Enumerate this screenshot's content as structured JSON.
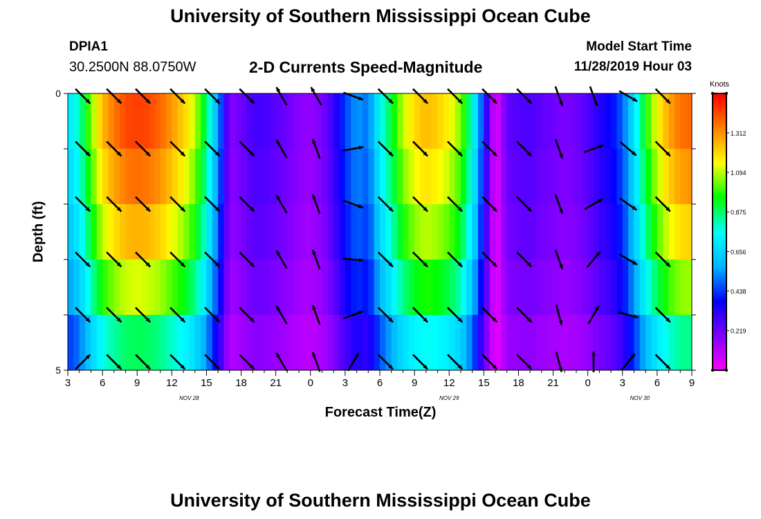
{
  "header": {
    "title": "University of Southern Mississippi Ocean Cube",
    "station_id": "DPIA1",
    "coordinates": "30.2500N 88.0750W",
    "subtitle": "2-D Currents Speed-Magnitude",
    "model_start_label": "Model Start Time",
    "model_start_value": "11/28/2019 Hour 03"
  },
  "footer": {
    "title": "University of Southern Mississippi Ocean Cube"
  },
  "chart_data": {
    "type": "heatmap",
    "title": "2-D Currents Speed-Magnitude",
    "xlabel": "Forecast Time(Z)",
    "ylabel": "Depth (ft)",
    "x_range_hours": [
      0,
      54
    ],
    "ylim": [
      0,
      5
    ],
    "x_ticks": [
      {
        "h": 0,
        "label": "3"
      },
      {
        "h": 3,
        "label": "6"
      },
      {
        "h": 6,
        "label": "9"
      },
      {
        "h": 9,
        "label": "12"
      },
      {
        "h": 12,
        "label": "15"
      },
      {
        "h": 15,
        "label": "18"
      },
      {
        "h": 18,
        "label": "21"
      },
      {
        "h": 21,
        "label": "0"
      },
      {
        "h": 24,
        "label": "3"
      },
      {
        "h": 27,
        "label": "6"
      },
      {
        "h": 30,
        "label": "9"
      },
      {
        "h": 33,
        "label": "12"
      },
      {
        "h": 36,
        "label": "15"
      },
      {
        "h": 39,
        "label": "18"
      },
      {
        "h": 42,
        "label": "21"
      },
      {
        "h": 45,
        "label": "0"
      },
      {
        "h": 48,
        "label": "3"
      },
      {
        "h": 51,
        "label": "6"
      },
      {
        "h": 54,
        "label": "9"
      }
    ],
    "date_labels": [
      {
        "h": 10.5,
        "label": "NOV 28"
      },
      {
        "h": 33.0,
        "label": "NOV 29"
      },
      {
        "h": 49.5,
        "label": "NOV 30"
      }
    ],
    "y_tick_labels": [
      {
        "depth": 0,
        "label": "0"
      },
      {
        "depth": 5,
        "label": "5"
      }
    ],
    "depth_levels": 5,
    "colorbar": {
      "label": "Knots",
      "range": [
        0,
        1.53
      ],
      "tick_values": [
        0.219,
        0.438,
        0.656,
        0.875,
        1.094,
        1.312
      ],
      "tick_labels": [
        "0.219",
        "0.438",
        "0.656",
        "0.875",
        "1.094",
        "1.312"
      ],
      "colors": [
        "#ff00ff",
        "#8000ff",
        "#0000ff",
        "#00b4ff",
        "#00ffff",
        "#00ff00",
        "#ffff00",
        "#ff8000",
        "#ff0000"
      ]
    },
    "time_hours": [
      0,
      1,
      2,
      3,
      4,
      5,
      6,
      7,
      8,
      9,
      10,
      11,
      12,
      13,
      14,
      15,
      16,
      17,
      18,
      19,
      20,
      21,
      22,
      23,
      24,
      25,
      26,
      27,
      28,
      29,
      30,
      31,
      32,
      33,
      34,
      35,
      36,
      37,
      38,
      39,
      40,
      41,
      42,
      43,
      44,
      45,
      46,
      47,
      48,
      49,
      50,
      51,
      52,
      53,
      54
    ],
    "speed_profile_knots": [
      0.7,
      0.82,
      1.05,
      1.25,
      1.35,
      1.42,
      1.44,
      1.42,
      1.38,
      1.3,
      1.22,
      1.1,
      0.88,
      0.55,
      0.18,
      0.22,
      0.28,
      0.28,
      0.25,
      0.22,
      0.18,
      0.16,
      0.2,
      0.3,
      0.45,
      0.55,
      0.5,
      0.75,
      0.92,
      1.1,
      1.2,
      1.25,
      1.22,
      1.16,
      1.05,
      0.8,
      0.4,
      0.02,
      0.24,
      0.26,
      0.27,
      0.24,
      0.22,
      0.2,
      0.22,
      0.26,
      0.33,
      0.38,
      0.48,
      0.7,
      0.96,
      1.15,
      1.28,
      1.36,
      1.38
    ],
    "depth_factors": [
      1.0,
      0.95,
      0.88,
      0.78,
      0.62
    ],
    "arrows": {
      "hours": [
        1.3,
        4.0,
        6.5,
        9.5,
        12.5,
        15.5,
        18.5,
        21.5,
        24.7,
        27.5,
        30.5,
        33.5,
        36.5,
        39.5,
        42.5,
        45.5,
        48.5,
        51.5
      ],
      "directions_deg": [
        [
          135,
          135,
          135,
          135,
          135,
          135,
          330,
          330,
          110,
          135,
          135,
          135,
          135,
          135,
          160,
          160,
          120,
          135
        ],
        [
          135,
          135,
          135,
          135,
          135,
          135,
          330,
          340,
          80,
          135,
          135,
          135,
          135,
          135,
          160,
          70,
          130,
          135
        ],
        [
          135,
          135,
          135,
          135,
          135,
          135,
          330,
          340,
          110,
          135,
          135,
          135,
          135,
          135,
          160,
          60,
          125,
          135
        ],
        [
          135,
          135,
          135,
          135,
          135,
          135,
          330,
          340,
          95,
          135,
          135,
          135,
          135,
          135,
          160,
          40,
          120,
          135
        ],
        [
          135,
          135,
          135,
          135,
          135,
          135,
          330,
          340,
          70,
          135,
          135,
          135,
          135,
          135,
          165,
          30,
          105,
          135
        ],
        [
          45,
          135,
          135,
          135,
          135,
          135,
          330,
          340,
          30,
          135,
          135,
          135,
          135,
          135,
          165,
          0,
          40,
          135
        ]
      ]
    }
  }
}
